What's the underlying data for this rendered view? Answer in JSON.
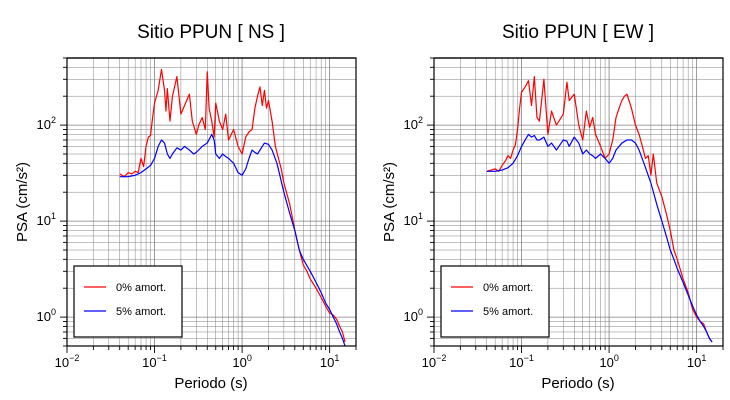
{
  "chart_data": [
    {
      "type": "line",
      "title": "Sitio PPUN [ NS ]",
      "xlabel": "Periodo (s)",
      "ylabel": "PSA (cm/s²)",
      "xscale": "log",
      "yscale": "log",
      "xlim": [
        0.01,
        20
      ],
      "ylim": [
        0.5,
        500
      ],
      "grid": true,
      "legend_position": "bottom-left",
      "x_ticks": [
        {
          "value": 0.01,
          "label_base": "10",
          "label_exp": "−2"
        },
        {
          "value": 0.1,
          "label_base": "10",
          "label_exp": "−1"
        },
        {
          "value": 1,
          "label_base": "10",
          "label_exp": "0"
        },
        {
          "value": 10,
          "label_base": "10",
          "label_exp": "1"
        }
      ],
      "y_ticks": [
        {
          "value": 1,
          "label_base": "10",
          "label_exp": "0"
        },
        {
          "value": 10,
          "label_base": "10",
          "label_exp": "1"
        },
        {
          "value": 100,
          "label_base": "10",
          "label_exp": "2"
        }
      ],
      "series": [
        {
          "name": "0% amort.",
          "color": "#ff0000",
          "points": [
            [
              0.04,
              31
            ],
            [
              0.045,
              29
            ],
            [
              0.05,
              32
            ],
            [
              0.055,
              31
            ],
            [
              0.06,
              33
            ],
            [
              0.065,
              32
            ],
            [
              0.07,
              45
            ],
            [
              0.075,
              37
            ],
            [
              0.08,
              60
            ],
            [
              0.085,
              75
            ],
            [
              0.09,
              78
            ],
            [
              0.095,
              120
            ],
            [
              0.1,
              170
            ],
            [
              0.11,
              230
            ],
            [
              0.12,
              380
            ],
            [
              0.13,
              230
            ],
            [
              0.135,
              140
            ],
            [
              0.14,
              240
            ],
            [
              0.15,
              110
            ],
            [
              0.16,
              200
            ],
            [
              0.18,
              320
            ],
            [
              0.2,
              130
            ],
            [
              0.22,
              160
            ],
            [
              0.25,
              210
            ],
            [
              0.27,
              110
            ],
            [
              0.3,
              80
            ],
            [
              0.32,
              100
            ],
            [
              0.35,
              120
            ],
            [
              0.38,
              90
            ],
            [
              0.4,
              360
            ],
            [
              0.42,
              150
            ],
            [
              0.45,
              110
            ],
            [
              0.48,
              75
            ],
            [
              0.5,
              170
            ],
            [
              0.55,
              110
            ],
            [
              0.6,
              90
            ],
            [
              0.65,
              130
            ],
            [
              0.7,
              70
            ],
            [
              0.8,
              90
            ],
            [
              0.9,
              60
            ],
            [
              1.0,
              50
            ],
            [
              1.1,
              75
            ],
            [
              1.2,
              85
            ],
            [
              1.3,
              90
            ],
            [
              1.4,
              150
            ],
            [
              1.5,
              200
            ],
            [
              1.6,
              250
            ],
            [
              1.7,
              160
            ],
            [
              1.8,
              230
            ],
            [
              1.9,
              150
            ],
            [
              2.0,
              180
            ],
            [
              2.2,
              110
            ],
            [
              2.4,
              60
            ],
            [
              2.6,
              45
            ],
            [
              2.8,
              35
            ],
            [
              3.0,
              25
            ],
            [
              3.5,
              15
            ],
            [
              4.0,
              8
            ],
            [
              4.5,
              5
            ],
            [
              5.0,
              3.5
            ],
            [
              5.5,
              3.0
            ],
            [
              6.0,
              2.5
            ],
            [
              7.0,
              2.0
            ],
            [
              8.0,
              1.6
            ],
            [
              9.0,
              1.3
            ],
            [
              10.0,
              1.1
            ],
            [
              11.0,
              1.05
            ],
            [
              12.0,
              0.95
            ],
            [
              13.0,
              0.8
            ],
            [
              14.0,
              0.7
            ],
            [
              15.0,
              0.55
            ]
          ]
        },
        {
          "name": "5% amort.",
          "color": "#0000ff",
          "points": [
            [
              0.04,
              29
            ],
            [
              0.05,
              29
            ],
            [
              0.06,
              30
            ],
            [
              0.07,
              32
            ],
            [
              0.08,
              35
            ],
            [
              0.09,
              38
            ],
            [
              0.1,
              45
            ],
            [
              0.11,
              60
            ],
            [
              0.12,
              70
            ],
            [
              0.13,
              65
            ],
            [
              0.14,
              50
            ],
            [
              0.15,
              45
            ],
            [
              0.16,
              50
            ],
            [
              0.18,
              58
            ],
            [
              0.2,
              55
            ],
            [
              0.22,
              60
            ],
            [
              0.25,
              55
            ],
            [
              0.28,
              50
            ],
            [
              0.3,
              52
            ],
            [
              0.35,
              60
            ],
            [
              0.4,
              65
            ],
            [
              0.45,
              80
            ],
            [
              0.48,
              70
            ],
            [
              0.5,
              50
            ],
            [
              0.55,
              45
            ],
            [
              0.6,
              50
            ],
            [
              0.65,
              47
            ],
            [
              0.7,
              45
            ],
            [
              0.8,
              40
            ],
            [
              0.9,
              32
            ],
            [
              1.0,
              30
            ],
            [
              1.1,
              35
            ],
            [
              1.2,
              45
            ],
            [
              1.3,
              55
            ],
            [
              1.4,
              52
            ],
            [
              1.5,
              50
            ],
            [
              1.6,
              55
            ],
            [
              1.8,
              65
            ],
            [
              2.0,
              63
            ],
            [
              2.2,
              55
            ],
            [
              2.5,
              40
            ],
            [
              3.0,
              20
            ],
            [
              3.5,
              12
            ],
            [
              4.0,
              8
            ],
            [
              4.5,
              5
            ],
            [
              5.0,
              4.0
            ],
            [
              6.0,
              3.0
            ],
            [
              7.0,
              2.3
            ],
            [
              8.0,
              1.8
            ],
            [
              9.0,
              1.4
            ],
            [
              10.0,
              1.2
            ],
            [
              11.0,
              1.0
            ],
            [
              12.0,
              0.85
            ],
            [
              13.0,
              0.7
            ],
            [
              14.0,
              0.6
            ],
            [
              15.0,
              0.5
            ]
          ]
        }
      ]
    },
    {
      "type": "line",
      "title": "Sitio PPUN [ EW ]",
      "xlabel": "Periodo (s)",
      "ylabel": "PSA (cm/s²)",
      "xscale": "log",
      "yscale": "log",
      "xlim": [
        0.01,
        20
      ],
      "ylim": [
        0.5,
        500
      ],
      "grid": true,
      "legend_position": "bottom-left",
      "x_ticks": [
        {
          "value": 0.01,
          "label_base": "10",
          "label_exp": "−2"
        },
        {
          "value": 0.1,
          "label_base": "10",
          "label_exp": "−1"
        },
        {
          "value": 1,
          "label_base": "10",
          "label_exp": "0"
        },
        {
          "value": 10,
          "label_base": "10",
          "label_exp": "1"
        }
      ],
      "y_ticks": [
        {
          "value": 1,
          "label_base": "10",
          "label_exp": "0"
        },
        {
          "value": 10,
          "label_base": "10",
          "label_exp": "1"
        },
        {
          "value": 100,
          "label_base": "10",
          "label_exp": "2"
        }
      ],
      "series": [
        {
          "name": "0% amort.",
          "color": "#ff0000",
          "points": [
            [
              0.04,
              33
            ],
            [
              0.045,
              34
            ],
            [
              0.05,
              35
            ],
            [
              0.055,
              33
            ],
            [
              0.06,
              38
            ],
            [
              0.065,
              42
            ],
            [
              0.07,
              48
            ],
            [
              0.075,
              45
            ],
            [
              0.08,
              55
            ],
            [
              0.085,
              62
            ],
            [
              0.09,
              90
            ],
            [
              0.095,
              150
            ],
            [
              0.1,
              220
            ],
            [
              0.11,
              250
            ],
            [
              0.12,
              290
            ],
            [
              0.13,
              160
            ],
            [
              0.14,
              320
            ],
            [
              0.15,
              120
            ],
            [
              0.16,
              110
            ],
            [
              0.18,
              300
            ],
            [
              0.2,
              80
            ],
            [
              0.22,
              140
            ],
            [
              0.25,
              100
            ],
            [
              0.3,
              130
            ],
            [
              0.33,
              280
            ],
            [
              0.35,
              180
            ],
            [
              0.4,
              210
            ],
            [
              0.45,
              100
            ],
            [
              0.5,
              70
            ],
            [
              0.55,
              140
            ],
            [
              0.6,
              95
            ],
            [
              0.65,
              120
            ],
            [
              0.7,
              80
            ],
            [
              0.8,
              60
            ],
            [
              0.9,
              45
            ],
            [
              1.0,
              50
            ],
            [
              1.1,
              70
            ],
            [
              1.2,
              120
            ],
            [
              1.3,
              150
            ],
            [
              1.4,
              180
            ],
            [
              1.5,
              200
            ],
            [
              1.6,
              210
            ],
            [
              1.8,
              150
            ],
            [
              2.0,
              100
            ],
            [
              2.2,
              80
            ],
            [
              2.4,
              60
            ],
            [
              2.6,
              45
            ],
            [
              2.8,
              48
            ],
            [
              3.0,
              30
            ],
            [
              3.2,
              50
            ],
            [
              3.5,
              25
            ],
            [
              4.0,
              18
            ],
            [
              4.5,
              12
            ],
            [
              5.0,
              8
            ],
            [
              5.5,
              5
            ],
            [
              6.0,
              4
            ],
            [
              7.0,
              2.5
            ],
            [
              8.0,
              1.8
            ],
            [
              9.0,
              1.2
            ],
            [
              10.0,
              1.0
            ],
            [
              11.0,
              0.9
            ],
            [
              12.0,
              0.85
            ],
            [
              13.0,
              0.7
            ],
            [
              14.0,
              0.6
            ],
            [
              15.0,
              0.55
            ]
          ]
        },
        {
          "name": "5% amort.",
          "color": "#0000ff",
          "points": [
            [
              0.04,
              33
            ],
            [
              0.05,
              33
            ],
            [
              0.06,
              34
            ],
            [
              0.07,
              36
            ],
            [
              0.08,
              40
            ],
            [
              0.09,
              48
            ],
            [
              0.1,
              60
            ],
            [
              0.11,
              70
            ],
            [
              0.12,
              80
            ],
            [
              0.13,
              75
            ],
            [
              0.14,
              78
            ],
            [
              0.15,
              70
            ],
            [
              0.16,
              70
            ],
            [
              0.18,
              75
            ],
            [
              0.2,
              60
            ],
            [
              0.22,
              65
            ],
            [
              0.25,
              55
            ],
            [
              0.3,
              70
            ],
            [
              0.33,
              68
            ],
            [
              0.35,
              60
            ],
            [
              0.4,
              75
            ],
            [
              0.45,
              65
            ],
            [
              0.5,
              50
            ],
            [
              0.55,
              55
            ],
            [
              0.6,
              50
            ],
            [
              0.65,
              48
            ],
            [
              0.7,
              45
            ],
            [
              0.8,
              50
            ],
            [
              0.9,
              45
            ],
            [
              1.0,
              40
            ],
            [
              1.1,
              45
            ],
            [
              1.2,
              55
            ],
            [
              1.4,
              65
            ],
            [
              1.6,
              70
            ],
            [
              1.8,
              70
            ],
            [
              2.0,
              65
            ],
            [
              2.2,
              55
            ],
            [
              2.5,
              40
            ],
            [
              3.0,
              25
            ],
            [
              3.5,
              15
            ],
            [
              4.0,
              10
            ],
            [
              4.5,
              7
            ],
            [
              5.0,
              5
            ],
            [
              5.5,
              4
            ],
            [
              6.0,
              3.2
            ],
            [
              7.0,
              2.3
            ],
            [
              8.0,
              1.7
            ],
            [
              9.0,
              1.3
            ],
            [
              10.0,
              1.05
            ],
            [
              11.0,
              0.9
            ],
            [
              12.0,
              0.8
            ],
            [
              13.0,
              0.7
            ],
            [
              14.0,
              0.6
            ],
            [
              15.0,
              0.55
            ]
          ]
        }
      ]
    }
  ]
}
